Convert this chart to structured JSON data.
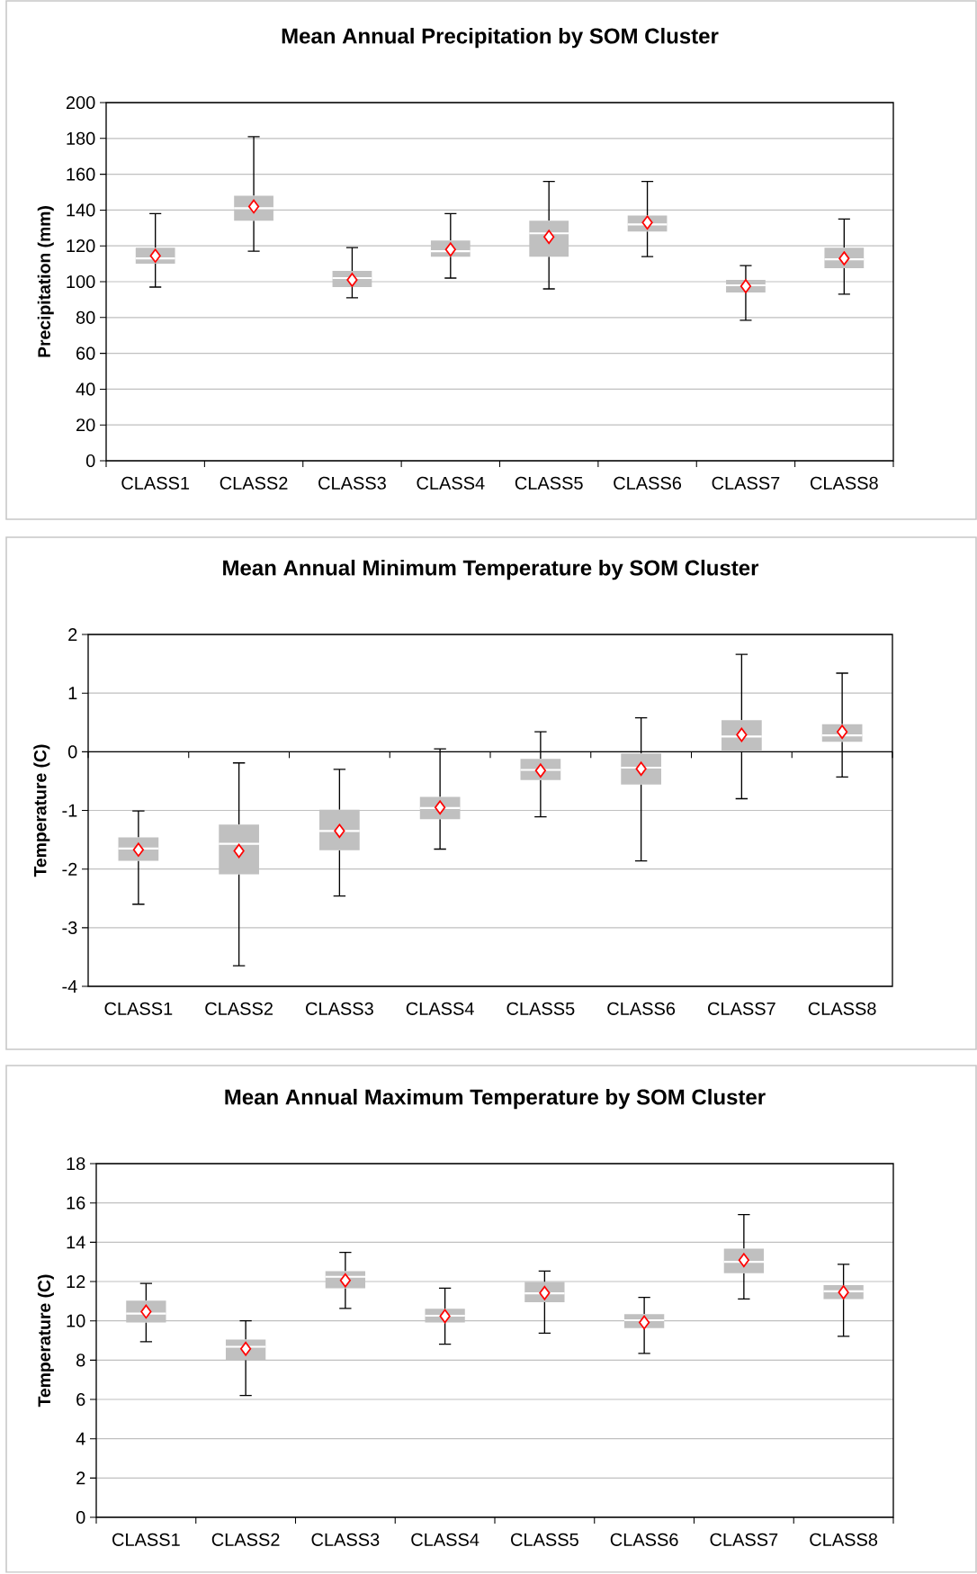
{
  "chart_data": [
    {
      "type": "box",
      "title": "Mean Annual Precipitation by SOM Cluster",
      "ylabel": "Precipitation (mm)",
      "categories": [
        "CLASS1",
        "CLASS2",
        "CLASS3",
        "CLASS4",
        "CLASS5",
        "CLASS6",
        "CLASS7",
        "CLASS8"
      ],
      "boxes": [
        {
          "low": 97,
          "q1": 110,
          "median": 113,
          "q3": 119,
          "high": 138,
          "mean": 114.5
        },
        {
          "low": 117,
          "q1": 134,
          "median": 141,
          "q3": 148,
          "high": 181,
          "mean": 142
        },
        {
          "low": 91,
          "q1": 97,
          "median": 102,
          "q3": 106,
          "high": 119,
          "mean": 101
        },
        {
          "low": 102,
          "q1": 114,
          "median": 117,
          "q3": 123,
          "high": 138,
          "mean": 118
        },
        {
          "low": 96,
          "q1": 114,
          "median": 127,
          "q3": 134,
          "high": 156,
          "mean": 125
        },
        {
          "low": 114,
          "q1": 128,
          "median": 132,
          "q3": 137,
          "high": 156,
          "mean": 133
        },
        {
          "low": 78.5,
          "q1": 94,
          "median": 98,
          "q3": 101,
          "high": 109,
          "mean": 97.5
        },
        {
          "low": 93,
          "q1": 107.5,
          "median": 112.5,
          "q3": 119,
          "high": 135,
          "mean": 113
        }
      ],
      "ylim": [
        0,
        200
      ],
      "yticks": [
        0,
        20,
        40,
        60,
        80,
        100,
        120,
        140,
        160,
        180,
        200
      ],
      "grid": "y"
    },
    {
      "type": "box",
      "title": "Mean Annual Minimum Temperature by SOM Cluster",
      "ylabel": "Temperature (C)",
      "categories": [
        "CLASS1",
        "CLASS2",
        "CLASS3",
        "CLASS4",
        "CLASS5",
        "CLASS6",
        "CLASS7",
        "CLASS8"
      ],
      "boxes": [
        {
          "low": -2.6,
          "q1": -1.86,
          "median": -1.65,
          "q3": -1.46,
          "high": -1.01,
          "mean": -1.67
        },
        {
          "low": -3.65,
          "q1": -2.09,
          "median": -1.57,
          "q3": -1.24,
          "high": -0.19,
          "mean": -1.69
        },
        {
          "low": -2.46,
          "q1": -1.68,
          "median": -1.35,
          "q3": -0.99,
          "high": -0.3,
          "mean": -1.35
        },
        {
          "low": -1.66,
          "q1": -1.15,
          "median": -0.96,
          "q3": -0.77,
          "high": 0.05,
          "mean": -0.95
        },
        {
          "low": -1.11,
          "q1": -0.48,
          "median": -0.31,
          "q3": -0.12,
          "high": 0.34,
          "mean": -0.32
        },
        {
          "low": -1.86,
          "q1": -0.56,
          "median": -0.27,
          "q3": -0.03,
          "high": 0.58,
          "mean": -0.29
        },
        {
          "low": -0.8,
          "q1": 0.01,
          "median": 0.26,
          "q3": 0.54,
          "high": 1.66,
          "mean": 0.29
        },
        {
          "low": -0.43,
          "q1": 0.17,
          "median": 0.28,
          "q3": 0.47,
          "high": 1.34,
          "mean": 0.34
        }
      ],
      "ylim": [
        -4,
        2
      ],
      "yticks": [
        -4,
        -3,
        -2,
        -1,
        0,
        1,
        2
      ],
      "grid": "y"
    },
    {
      "type": "box",
      "title": "Mean Annual Maximum Temperature by SOM Cluster",
      "ylabel": "Temperature (C)",
      "categories": [
        "CLASS1",
        "CLASS2",
        "CLASS3",
        "CLASS4",
        "CLASS5",
        "CLASS6",
        "CLASS7",
        "CLASS8"
      ],
      "boxes": [
        {
          "low": 8.94,
          "q1": 9.92,
          "median": 10.37,
          "q3": 11.03,
          "high": 11.9,
          "mean": 10.47
        },
        {
          "low": 6.2,
          "q1": 8.0,
          "median": 8.68,
          "q3": 9.05,
          "high": 10.0,
          "mean": 8.58
        },
        {
          "low": 10.63,
          "q1": 11.66,
          "median": 12.24,
          "q3": 12.53,
          "high": 13.48,
          "mean": 12.06
        },
        {
          "low": 8.81,
          "q1": 9.92,
          "median": 10.26,
          "q3": 10.61,
          "high": 11.66,
          "mean": 10.24
        },
        {
          "low": 9.37,
          "q1": 10.95,
          "median": 11.4,
          "q3": 11.98,
          "high": 12.53,
          "mean": 11.42
        },
        {
          "low": 8.34,
          "q1": 9.63,
          "median": 10.03,
          "q3": 10.34,
          "high": 11.19,
          "mean": 9.92
        },
        {
          "low": 11.11,
          "q1": 12.43,
          "median": 13.0,
          "q3": 13.67,
          "high": 15.41,
          "mean": 13.09
        },
        {
          "low": 9.21,
          "q1": 11.11,
          "median": 11.5,
          "q3": 11.82,
          "high": 12.88,
          "mean": 11.45
        }
      ],
      "ylim": [
        0,
        18
      ],
      "yticks": [
        0,
        2,
        4,
        6,
        8,
        10,
        12,
        14,
        16,
        18
      ],
      "grid": "y"
    }
  ]
}
